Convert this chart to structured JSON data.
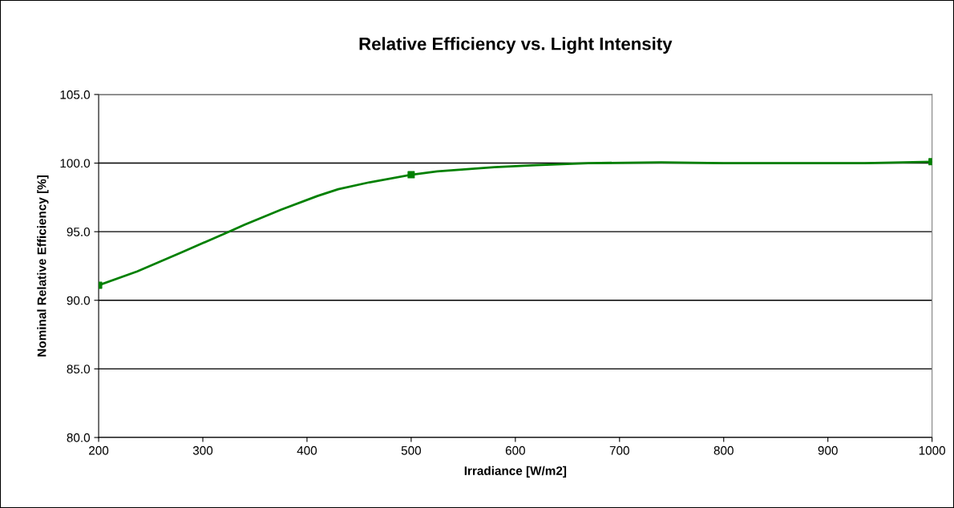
{
  "chart_data": {
    "type": "line",
    "title": "Relative Efficiency vs. Light Intensity",
    "xlabel": "Irradiance [W/m2]",
    "ylabel": "Nominal Relative Efficiency [%]",
    "series": [
      {
        "color": "#008000",
        "x": [
          200,
          237,
          280,
          325,
          340,
          375,
          410,
          430,
          460,
          500,
          525,
          580,
          620,
          670,
          740,
          800,
          870,
          935,
          1000
        ],
        "values": [
          91.1,
          92.1,
          93.5,
          95.0,
          95.5,
          96.6,
          97.6,
          98.1,
          98.6,
          99.15,
          99.4,
          99.7,
          99.85,
          100.0,
          100.05,
          100.0,
          100.0,
          100.0,
          100.1
        ]
      },
      {
        "type": "scatter",
        "color": "#008000",
        "marker": "square",
        "x": [
          200,
          500,
          1000
        ],
        "values": [
          91.1,
          99.15,
          100.1
        ]
      }
    ],
    "xlim": [
      200,
      1000
    ],
    "xticks": [
      200,
      300,
      400,
      500,
      600,
      700,
      800,
      900,
      1000
    ],
    "ylim": [
      80,
      105
    ],
    "yticks": [
      {
        "value": 80,
        "label": "80.0"
      },
      {
        "value": 85,
        "label": "85.0"
      },
      {
        "value": 90,
        "label": "90.0"
      },
      {
        "value": 95,
        "label": "95.0"
      },
      {
        "value": 100,
        "label": "100.0"
      },
      {
        "value": 105,
        "label": "105.0"
      }
    ],
    "grid": "y",
    "legend": false
  }
}
